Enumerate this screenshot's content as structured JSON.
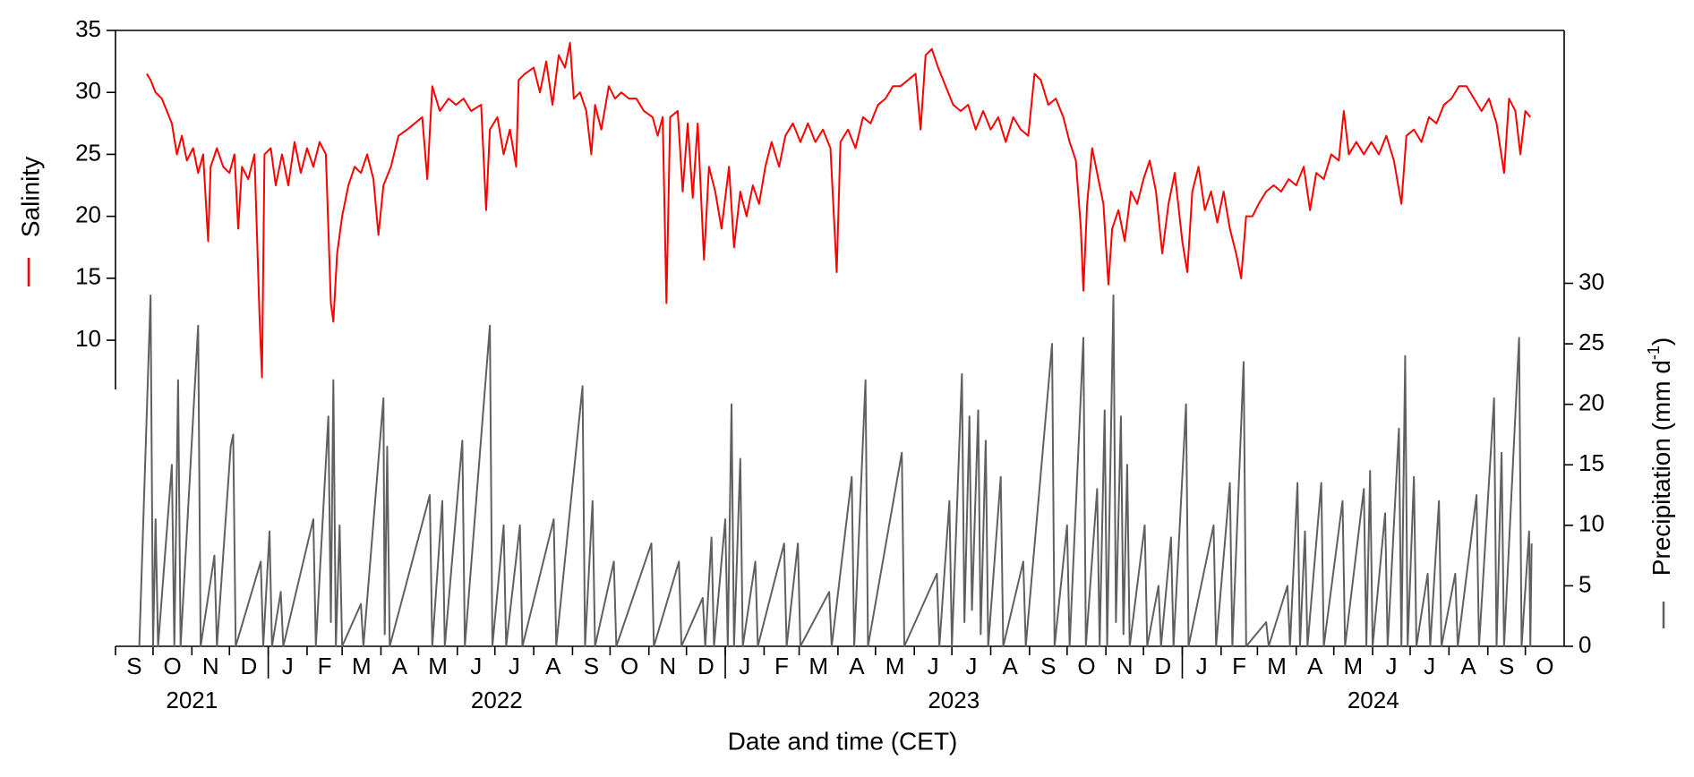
{
  "chart_data": {
    "type": "line",
    "xlabel": "Date and time (CET)",
    "y2label": [
      "Precipitation (mm d",
      "-1",
      ")"
    ],
    "xlim": [
      "2021-09-01",
      "2024-11-01"
    ],
    "xticks": [
      {
        "value": "2021-09",
        "label": "S"
      },
      {
        "value": "2021-10",
        "label": "O"
      },
      {
        "value": "2021-11",
        "label": "N"
      },
      {
        "value": "2021-12",
        "label": "D"
      },
      {
        "value": "2022-01",
        "label": "J"
      },
      {
        "value": "2022-02",
        "label": "F"
      },
      {
        "value": "2022-03",
        "label": "M"
      },
      {
        "value": "2022-04",
        "label": "A"
      },
      {
        "value": "2022-05",
        "label": "M"
      },
      {
        "value": "2022-06",
        "label": "J"
      },
      {
        "value": "2022-07",
        "label": "J"
      },
      {
        "value": "2022-08",
        "label": "A"
      },
      {
        "value": "2022-09",
        "label": "S"
      },
      {
        "value": "2022-10",
        "label": "O"
      },
      {
        "value": "2022-11",
        "label": "N"
      },
      {
        "value": "2022-12",
        "label": "D"
      },
      {
        "value": "2023-01",
        "label": "J"
      },
      {
        "value": "2023-02",
        "label": "F"
      },
      {
        "value": "2023-03",
        "label": "M"
      },
      {
        "value": "2023-04",
        "label": "A"
      },
      {
        "value": "2023-05",
        "label": "M"
      },
      {
        "value": "2023-06",
        "label": "J"
      },
      {
        "value": "2023-07",
        "label": "J"
      },
      {
        "value": "2023-08",
        "label": "A"
      },
      {
        "value": "2023-09",
        "label": "S"
      },
      {
        "value": "2023-10",
        "label": "O"
      },
      {
        "value": "2023-11",
        "label": "N"
      },
      {
        "value": "2023-12",
        "label": "D"
      },
      {
        "value": "2024-01",
        "label": "J"
      },
      {
        "value": "2024-02",
        "label": "F"
      },
      {
        "value": "2024-03",
        "label": "M"
      },
      {
        "value": "2024-04",
        "label": "A"
      },
      {
        "value": "2024-05",
        "label": "M"
      },
      {
        "value": "2024-06",
        "label": "J"
      },
      {
        "value": "2024-07",
        "label": "J"
      },
      {
        "value": "2024-08",
        "label": "A"
      },
      {
        "value": "2024-09",
        "label": "S"
      },
      {
        "value": "2024-10",
        "label": "O"
      }
    ],
    "xyears": [
      "2021",
      "2022",
      "2023",
      "2024"
    ],
    "ylim": [
      -14.7,
      35
    ],
    "yticks": [
      10,
      15,
      20,
      25,
      30,
      35
    ],
    "y2lim": [
      0,
      50.9
    ],
    "y2ticks": [
      0,
      5,
      10,
      15,
      20,
      25,
      30
    ],
    "series": [
      {
        "name": "Salinity",
        "color": "#ff0000",
        "x": [
          "2021-09-26",
          "2021-09-29",
          "2021-10-03",
          "2021-10-08",
          "2021-10-12",
          "2021-10-16",
          "2021-10-20",
          "2021-10-24",
          "2021-10-28",
          "2021-11-02",
          "2021-11-06",
          "2021-11-10",
          "2021-11-14",
          "2021-11-16",
          "2021-11-21",
          "2021-11-26",
          "2021-12-01",
          "2021-12-05",
          "2021-12-08",
          "2021-12-11",
          "2021-12-16",
          "2021-12-21",
          "2021-12-25",
          "2021-12-27",
          "2021-12-29",
          "2022-01-03",
          "2022-01-07",
          "2022-01-12",
          "2022-01-17",
          "2022-01-22",
          "2022-01-27",
          "2022-02-01",
          "2022-02-06",
          "2022-02-11",
          "2022-02-16",
          "2022-02-20",
          "2022-02-22",
          "2022-02-25",
          "2022-03-01",
          "2022-03-06",
          "2022-03-11",
          "2022-03-16",
          "2022-03-21",
          "2022-03-26",
          "2022-03-30",
          "2022-04-03",
          "2022-04-09",
          "2022-04-15",
          "2022-04-22",
          "2022-04-28",
          "2022-05-04",
          "2022-05-08",
          "2022-05-12",
          "2022-05-18",
          "2022-05-25",
          "2022-05-31",
          "2022-06-06",
          "2022-06-12",
          "2022-06-20",
          "2022-06-24",
          "2022-06-27",
          "2022-07-03",
          "2022-07-08",
          "2022-07-13",
          "2022-07-18",
          "2022-07-20",
          "2022-07-25",
          "2022-08-01",
          "2022-08-06",
          "2022-08-11",
          "2022-08-16",
          "2022-08-21",
          "2022-08-26",
          "2022-08-30",
          "2022-09-02",
          "2022-09-07",
          "2022-09-12",
          "2022-09-16",
          "2022-09-19",
          "2022-09-24",
          "2022-09-30",
          "2022-10-05",
          "2022-10-10",
          "2022-10-16",
          "2022-10-22",
          "2022-10-28",
          "2022-11-04",
          "2022-11-08",
          "2022-11-12",
          "2022-11-15",
          "2022-11-18",
          "2022-11-24",
          "2022-11-28",
          "2022-12-02",
          "2022-12-06",
          "2022-12-10",
          "2022-12-15",
          "2022-12-19",
          "2022-12-24",
          "2022-12-29",
          "2023-01-04",
          "2023-01-08",
          "2023-01-13",
          "2023-01-18",
          "2023-01-23",
          "2023-01-28",
          "2023-02-02",
          "2023-02-07",
          "2023-02-13",
          "2023-02-18",
          "2023-02-24",
          "2023-03-02",
          "2023-03-08",
          "2023-03-14",
          "2023-03-20",
          "2023-03-26",
          "2023-03-31",
          "2023-04-03",
          "2023-04-09",
          "2023-04-15",
          "2023-04-21",
          "2023-04-27",
          "2023-05-03",
          "2023-05-09",
          "2023-05-15",
          "2023-05-21",
          "2023-05-27",
          "2023-06-02",
          "2023-06-06",
          "2023-06-10",
          "2023-06-15",
          "2023-06-20",
          "2023-06-26",
          "2023-07-02",
          "2023-07-08",
          "2023-07-14",
          "2023-07-20",
          "2023-07-26",
          "2023-08-01",
          "2023-08-07",
          "2023-08-13",
          "2023-08-19",
          "2023-08-25",
          "2023-08-31",
          "2023-09-05",
          "2023-09-10",
          "2023-09-16",
          "2023-09-22",
          "2023-09-28",
          "2023-10-03",
          "2023-10-08",
          "2023-10-12",
          "2023-10-14",
          "2023-10-17",
          "2023-10-21",
          "2023-10-26",
          "2023-10-30",
          "2023-11-03",
          "2023-11-06",
          "2023-11-11",
          "2023-11-16",
          "2023-11-21",
          "2023-11-26",
          "2023-12-01",
          "2023-12-06",
          "2023-12-11",
          "2023-12-16",
          "2023-12-21",
          "2023-12-26",
          "2024-01-01",
          "2024-01-05",
          "2024-01-09",
          "2024-01-14",
          "2024-01-19",
          "2024-01-24",
          "2024-01-29",
          "2024-02-03",
          "2024-02-08",
          "2024-02-13",
          "2024-02-17",
          "2024-02-21",
          "2024-02-26",
          "2024-03-02",
          "2024-03-08",
          "2024-03-14",
          "2024-03-20",
          "2024-03-26",
          "2024-04-01",
          "2024-04-07",
          "2024-04-12",
          "2024-04-17",
          "2024-04-23",
          "2024-04-29",
          "2024-05-05",
          "2024-05-09",
          "2024-05-13",
          "2024-05-19",
          "2024-05-25",
          "2024-05-31",
          "2024-06-06",
          "2024-06-12",
          "2024-06-18",
          "2024-06-24",
          "2024-06-28",
          "2024-07-04",
          "2024-07-10",
          "2024-07-16",
          "2024-07-22",
          "2024-07-28",
          "2024-08-03",
          "2024-08-09",
          "2024-08-15",
          "2024-08-21",
          "2024-08-27",
          "2024-09-02",
          "2024-09-08",
          "2024-09-14",
          "2024-09-18",
          "2024-09-23",
          "2024-09-27",
          "2024-10-01",
          "2024-10-05"
        ],
        "values": [
          31.5,
          31,
          30,
          29.5,
          28.5,
          27.5,
          25,
          26.5,
          24.5,
          25.5,
          23.5,
          25,
          18,
          24,
          25.5,
          24,
          23.5,
          25,
          19,
          24,
          23,
          25,
          12,
          7,
          25,
          25.5,
          22.5,
          25,
          22.5,
          26,
          23.5,
          25.5,
          24,
          26,
          25,
          13,
          11.5,
          17,
          20,
          22.5,
          24,
          23.5,
          25,
          23,
          18.5,
          22.5,
          24,
          26.5,
          27,
          27.5,
          28,
          23,
          30.5,
          28.5,
          29.5,
          29,
          29.5,
          28.5,
          29,
          20.5,
          27,
          28,
          25,
          27,
          24,
          31,
          31.5,
          32,
          30,
          32.5,
          29,
          33,
          32,
          34,
          29.5,
          30,
          28.5,
          25,
          29,
          27,
          30.5,
          29.5,
          30,
          29.5,
          29.5,
          28.5,
          28,
          26.5,
          28,
          13,
          28,
          28.5,
          22,
          27.5,
          21.5,
          27.5,
          16.5,
          24,
          22,
          19,
          24,
          17.5,
          22,
          20,
          22.5,
          21,
          24,
          26,
          24,
          26.5,
          27.5,
          26,
          27.5,
          26,
          27,
          25.5,
          15.5,
          26,
          27,
          25.5,
          28,
          27.5,
          29,
          29.5,
          30.5,
          30.5,
          31,
          31.5,
          27,
          33,
          33.5,
          32,
          30.5,
          29,
          28.5,
          29,
          27,
          28.5,
          27,
          28,
          26,
          28,
          27,
          26.5,
          31.5,
          31,
          29,
          29.5,
          28,
          26,
          24.5,
          19,
          14,
          21,
          25.5,
          23,
          21,
          14.5,
          19,
          20.5,
          18,
          22,
          21,
          23,
          24.5,
          22,
          17,
          21,
          23.5,
          18,
          15.5,
          22,
          24,
          20.5,
          22,
          19.5,
          22,
          19,
          17,
          15,
          20,
          20,
          21,
          22,
          22.5,
          22,
          23,
          22.5,
          24,
          20.5,
          23.5,
          23,
          25,
          24.5,
          28.5,
          25,
          26,
          25,
          26,
          25,
          26.5,
          24.5,
          21,
          26.5,
          27,
          26,
          28,
          27.5,
          29,
          29.5,
          30.5,
          30.5,
          29.5,
          28.5,
          29.5,
          27.5,
          23.5,
          29.5,
          28.5,
          25,
          28.5,
          28
        ]
      },
      {
        "axis": "y2",
        "color": "#606060",
        "x": [
          "2021-09-20",
          "2021-09-29",
          "2021-10-01",
          "2021-10-03",
          "2021-10-05",
          "2021-10-16",
          "2021-10-18",
          "2021-10-21",
          "2021-10-23",
          "2021-11-06",
          "2021-11-08",
          "2021-11-19",
          "2021-11-21",
          "2021-12-02",
          "2021-12-04",
          "2021-12-06",
          "2021-12-26",
          "2021-12-28",
          "2022-01-02",
          "2022-01-04",
          "2022-01-11",
          "2022-01-13",
          "2022-02-06",
          "2022-02-08",
          "2022-02-18",
          "2022-02-20",
          "2022-02-22",
          "2022-02-24",
          "2022-02-27",
          "2022-03-01",
          "2022-03-16",
          "2022-03-18",
          "2022-04-03",
          "2022-04-04",
          "2022-04-06",
          "2022-04-08",
          "2022-05-10",
          "2022-05-12",
          "2022-05-20",
          "2022-05-22",
          "2022-06-05",
          "2022-06-07",
          "2022-06-27",
          "2022-06-29",
          "2022-07-08",
          "2022-07-10",
          "2022-07-21",
          "2022-07-23",
          "2022-08-17",
          "2022-08-19",
          "2022-09-09",
          "2022-09-11",
          "2022-09-17",
          "2022-09-19",
          "2022-10-04",
          "2022-10-06",
          "2022-11-03",
          "2022-11-05",
          "2022-11-25",
          "2022-11-27",
          "2022-12-14",
          "2022-12-16",
          "2022-12-21",
          "2022-12-23",
          "2023-01-01",
          "2023-01-03",
          "2023-01-06",
          "2023-01-08",
          "2023-01-13",
          "2023-01-15",
          "2023-01-25",
          "2023-01-27",
          "2023-02-17",
          "2023-02-19",
          "2023-02-28",
          "2023-03-02",
          "2023-03-25",
          "2023-03-27",
          "2023-04-12",
          "2023-04-14",
          "2023-04-23",
          "2023-04-25",
          "2023-05-22",
          "2023-05-24",
          "2023-06-19",
          "2023-06-21",
          "2023-06-29",
          "2023-07-01",
          "2023-07-09",
          "2023-07-11",
          "2023-07-15",
          "2023-07-17",
          "2023-07-22",
          "2023-07-24",
          "2023-07-28",
          "2023-07-30",
          "2023-08-09",
          "2023-08-11",
          "2023-08-27",
          "2023-08-29",
          "2023-09-19",
          "2023-09-21",
          "2023-10-01",
          "2023-10-03",
          "2023-10-14",
          "2023-10-16",
          "2023-10-25",
          "2023-10-27",
          "2023-10-31",
          "2023-11-02",
          "2023-11-07",
          "2023-11-09",
          "2023-11-13",
          "2023-11-15",
          "2023-11-18",
          "2023-11-20",
          "2023-12-02",
          "2023-12-04",
          "2023-12-13",
          "2023-12-15",
          "2023-12-23",
          "2023-12-25",
          "2024-01-04",
          "2024-01-06",
          "2024-01-26",
          "2024-01-28",
          "2024-02-08",
          "2024-02-10",
          "2024-02-19",
          "2024-02-21",
          "2024-03-08",
          "2024-03-10",
          "2024-03-25",
          "2024-03-27",
          "2024-04-02",
          "2024-04-04",
          "2024-04-08",
          "2024-04-10",
          "2024-04-21",
          "2024-04-23",
          "2024-05-08",
          "2024-05-10",
          "2024-05-25",
          "2024-05-27",
          "2024-05-30",
          "2024-06-01",
          "2024-06-11",
          "2024-06-13",
          "2024-06-22",
          "2024-06-24",
          "2024-06-27",
          "2024-06-29",
          "2024-07-04",
          "2024-07-06",
          "2024-07-15",
          "2024-07-17",
          "2024-07-24",
          "2024-07-26",
          "2024-08-06",
          "2024-08-08",
          "2024-08-23",
          "2024-08-25",
          "2024-09-06",
          "2024-09-08",
          "2024-09-12",
          "2024-09-14",
          "2024-09-26",
          "2024-09-28",
          "2024-10-04",
          "2024-10-05",
          "2024-10-06"
        ],
        "values": [
          0,
          29,
          0,
          10.5,
          0,
          15,
          0,
          22,
          0,
          26.5,
          0,
          7.5,
          0,
          16.5,
          17.5,
          0,
          7,
          0,
          9.5,
          0,
          4.5,
          0,
          10.5,
          0,
          19,
          2,
          22,
          0,
          10,
          0,
          3.5,
          0,
          20.5,
          1,
          16.5,
          0,
          12.5,
          0,
          12,
          0,
          17,
          0,
          26.5,
          0,
          10,
          0,
          10,
          0,
          10.5,
          0,
          21.5,
          0,
          12,
          0,
          7,
          0,
          8.5,
          0,
          7,
          0,
          4,
          0,
          9,
          0,
          10.5,
          0,
          20,
          0,
          15.5,
          0,
          7,
          0,
          8.5,
          0,
          8.5,
          0,
          4.5,
          0,
          14,
          0,
          22,
          0,
          16,
          0,
          6,
          0,
          12,
          0,
          22.5,
          2,
          19,
          3,
          19.5,
          1,
          17,
          0,
          14,
          0,
          7,
          0,
          25,
          0,
          10,
          0,
          25.5,
          0,
          13,
          0,
          19.5,
          0,
          29,
          2,
          19,
          1,
          15,
          0,
          10,
          0,
          5,
          0,
          9,
          0,
          20,
          0,
          10,
          0,
          13.5,
          0,
          23.5,
          0,
          2,
          0,
          5,
          0,
          13.5,
          0,
          9.5,
          0,
          13.5,
          0,
          12,
          0,
          13,
          0,
          14.5,
          0,
          11,
          0,
          18,
          0,
          24,
          0,
          14,
          0,
          6,
          0,
          12,
          0,
          6,
          0,
          12.5,
          0,
          20.5,
          0,
          16,
          0,
          25.5,
          0,
          9.5,
          0,
          8.5
        ]
      }
    ]
  }
}
